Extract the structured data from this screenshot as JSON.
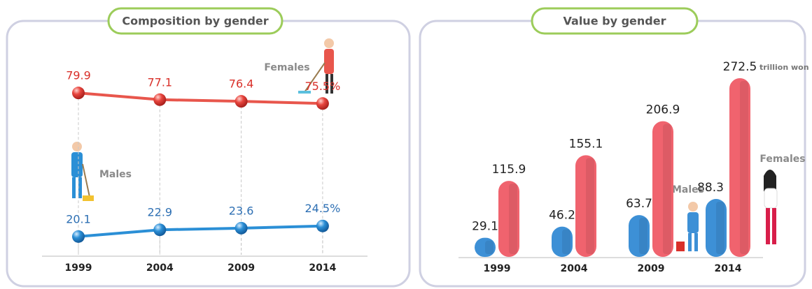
{
  "chart_data": [
    {
      "type": "line",
      "title": "Composition by gender",
      "categories": [
        "1999",
        "2004",
        "2009",
        "2014"
      ],
      "series": [
        {
          "name": "Females",
          "color": "#e8564c",
          "values": [
            79.9,
            77.1,
            76.4,
            75.5
          ],
          "value_labels": [
            "79.9",
            "77.1",
            "76.4",
            "75.5%"
          ]
        },
        {
          "name": "Males",
          "color": "#2b8fd6",
          "values": [
            20.1,
            22.9,
            23.6,
            24.5
          ],
          "value_labels": [
            "20.1",
            "22.9",
            "23.6",
            "24.5%"
          ]
        }
      ],
      "ylim": [
        0,
        100
      ]
    },
    {
      "type": "bar",
      "title": "Value by gender",
      "annotation": "trillion won",
      "categories": [
        "1999",
        "2004",
        "2009",
        "2014"
      ],
      "series": [
        {
          "name": "Males",
          "color": "#3d90d6",
          "values": [
            29.1,
            46.2,
            63.7,
            88.3
          ]
        },
        {
          "name": "Females",
          "color": "#f0636e",
          "values": [
            115.9,
            155.1,
            206.9,
            272.5
          ]
        }
      ],
      "ylim": [
        0,
        280
      ]
    }
  ]
}
